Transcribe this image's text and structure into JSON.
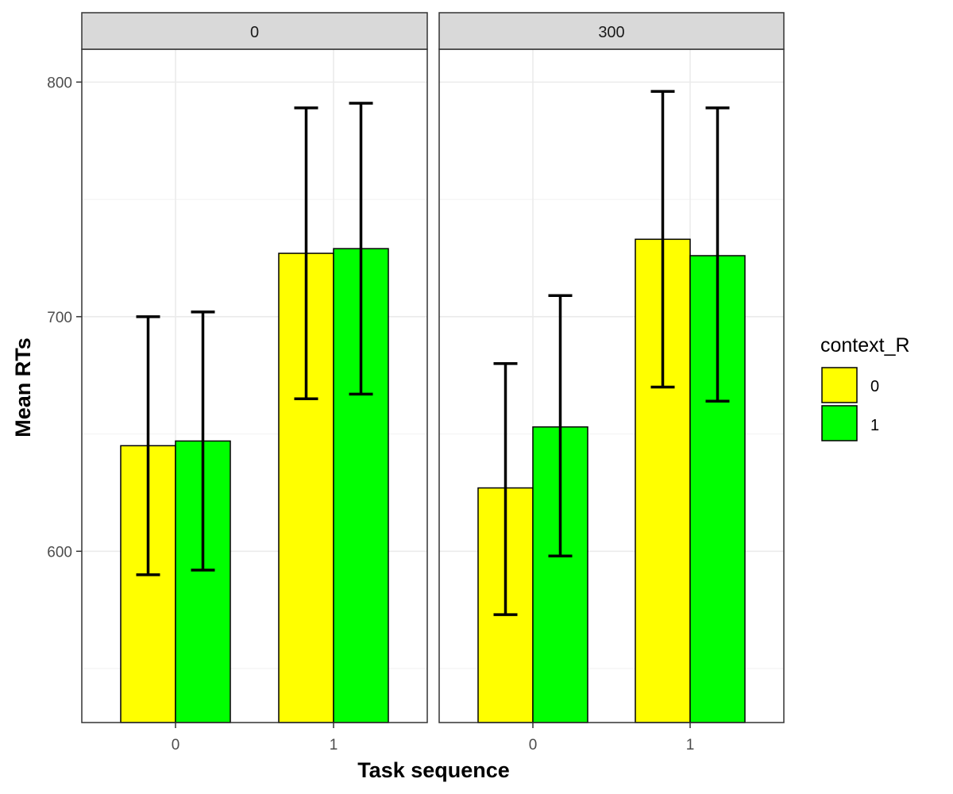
{
  "chart_data": {
    "type": "bar",
    "facet_by": "panel",
    "panels": [
      {
        "label": "0",
        "categories": [
          "0",
          "1"
        ],
        "series": [
          {
            "name": "0",
            "values": [
              645,
              727
            ],
            "error_low": [
              590,
              665
            ],
            "error_high": [
              700,
              789
            ]
          },
          {
            "name": "1",
            "values": [
              647,
              729
            ],
            "error_low": [
              592,
              667
            ],
            "error_high": [
              702,
              791
            ]
          }
        ]
      },
      {
        "label": "300",
        "categories": [
          "0",
          "1"
        ],
        "series": [
          {
            "name": "0",
            "values": [
              627,
              733
            ],
            "error_low": [
              573,
              670
            ],
            "error_high": [
              680,
              796
            ]
          },
          {
            "name": "1",
            "values": [
              653,
              726
            ],
            "error_low": [
              598,
              664
            ],
            "error_high": [
              709,
              789
            ]
          }
        ]
      }
    ],
    "ylim": [
      527,
      814
    ],
    "yticks": [
      600,
      700,
      800
    ],
    "xlabel": "Task sequence",
    "ylabel": "Mean RTs",
    "legend": {
      "title": "context_R",
      "entries": [
        "0",
        "1"
      ],
      "placement": "right"
    },
    "colors": {
      "0": "#FFFF00",
      "1": "#00FF00"
    },
    "grid": true
  }
}
